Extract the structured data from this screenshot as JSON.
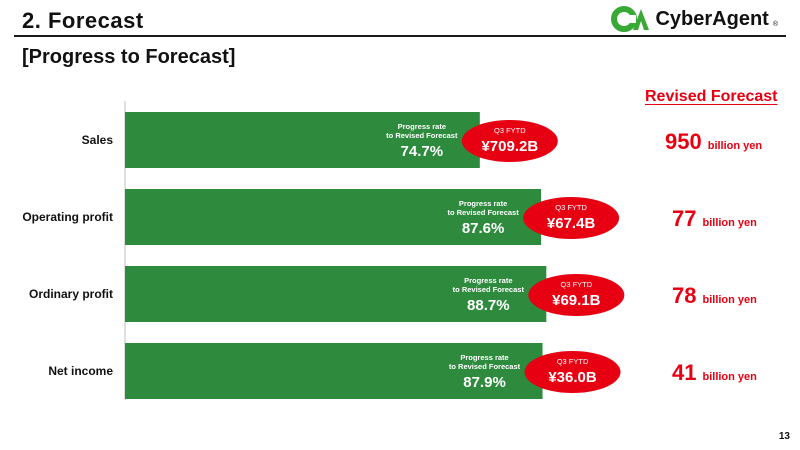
{
  "header": {
    "title": "2. Forecast",
    "logo_text": "CyberAgent",
    "logo_reg": "®"
  },
  "subtitle": "[Progress to Forecast]",
  "revised_forecast_header": "Revised Forecast",
  "page_number": "13",
  "colors": {
    "bar": "#2e8b3e",
    "accent": "#e60012",
    "axis": "#bfbfbf"
  },
  "chart_data": {
    "type": "bar",
    "orientation": "horizontal",
    "categories": [
      "Sales",
      "Operating profit",
      "Ordinary profit",
      "Net income"
    ],
    "values": [
      74.7,
      87.6,
      88.7,
      87.9
    ],
    "xlim": [
      0,
      100
    ],
    "bar_label_caption": [
      "Progress rate",
      "to Revised Forecast"
    ],
    "bar_value_labels": [
      "74.7%",
      "87.6%",
      "88.7%",
      "87.9%"
    ],
    "ytd_caption": "Q3 FYTD",
    "ytd_values": [
      "¥709.2B",
      "¥67.4B",
      "¥69.1B",
      "¥36.0B"
    ],
    "forecast_values": [
      "950",
      "77",
      "78",
      "41"
    ],
    "forecast_unit": "billion yen"
  }
}
